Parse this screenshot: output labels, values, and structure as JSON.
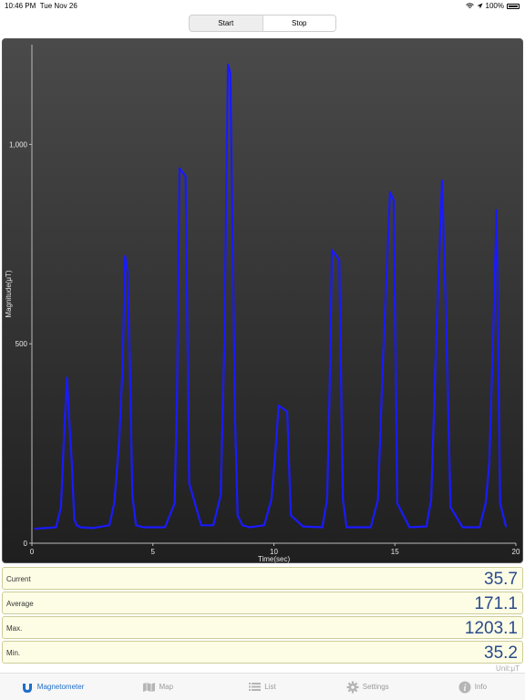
{
  "status_bar": {
    "time": "10:46 PM",
    "date": "Tue Nov 26",
    "battery": "100%"
  },
  "segmented": {
    "start_label": "Start",
    "stop_label": "Stop",
    "selected": "Stop"
  },
  "chart_data": {
    "type": "line",
    "title": "",
    "xlabel": "Time(sec)",
    "ylabel": "Magnitude(μT)",
    "xlim": [
      0,
      20
    ],
    "ylim": [
      0,
      1250
    ],
    "x_ticks": [
      "0",
      "5",
      "10",
      "15",
      "20"
    ],
    "y_ticks": [
      "0",
      "500",
      "1,000"
    ],
    "y_tick_values": [
      0,
      500,
      1000
    ],
    "x_tick_values": [
      0,
      5,
      10,
      15,
      20
    ],
    "line_color": "#1a1aff",
    "series": [
      {
        "x": [
          0.1,
          1.0,
          1.2,
          1.35,
          1.45,
          1.55,
          1.65,
          1.75,
          1.85,
          2.0,
          2.5,
          3.2,
          3.4,
          3.6,
          3.75,
          3.85,
          3.95,
          4.05,
          4.15,
          4.3,
          4.6,
          5.5,
          5.9,
          6.0,
          6.1,
          6.35,
          6.5,
          7.0,
          7.5,
          7.8,
          7.95,
          8.1,
          8.2,
          8.4,
          8.5,
          8.7,
          9.0,
          9.6,
          9.9,
          10.05,
          10.2,
          10.55,
          10.7,
          11.2,
          12.0,
          12.2,
          12.3,
          12.4,
          12.7,
          12.85,
          13.0,
          13.5,
          14.0,
          14.3,
          14.5,
          14.8,
          14.95,
          15.1,
          15.6,
          16.3,
          16.5,
          16.7,
          16.95,
          17.1,
          17.3,
          17.8,
          18.5,
          18.75,
          18.9,
          19.05,
          19.2,
          19.35,
          19.6
        ],
        "y": [
          36,
          40,
          90,
          300,
          415,
          300,
          200,
          60,
          45,
          40,
          38,
          45,
          100,
          250,
          450,
          720,
          680,
          450,
          120,
          45,
          40,
          40,
          100,
          380,
          940,
          920,
          150,
          45,
          45,
          120,
          500,
          1200,
          1180,
          300,
          70,
          45,
          40,
          45,
          110,
          220,
          345,
          330,
          70,
          42,
          40,
          110,
          380,
          735,
          710,
          110,
          40,
          40,
          40,
          110,
          450,
          880,
          860,
          100,
          40,
          42,
          110,
          500,
          910,
          600,
          90,
          40,
          40,
          100,
          200,
          500,
          835,
          100,
          40
        ]
      }
    ]
  },
  "readouts": [
    {
      "label": "Current",
      "value": "35.7"
    },
    {
      "label": "Average",
      "value": "171.1"
    },
    {
      "label": "Max.",
      "value": "1203.1"
    },
    {
      "label": "Min.",
      "value": "35.2"
    }
  ],
  "unit_label": "Unit:μT",
  "tabs": [
    {
      "label": "Magnetometer",
      "icon": "magnet-icon",
      "active": true
    },
    {
      "label": "Map",
      "icon": "map-icon",
      "active": false
    },
    {
      "label": "List",
      "icon": "list-icon",
      "active": false
    },
    {
      "label": "Settings",
      "icon": "gear-icon",
      "active": false
    },
    {
      "label": "Info",
      "icon": "info-icon",
      "active": false
    }
  ],
  "colors": {
    "accent": "#1e6ec8",
    "value_text": "#2a4a8a",
    "readout_bg": "#fdfde6"
  }
}
